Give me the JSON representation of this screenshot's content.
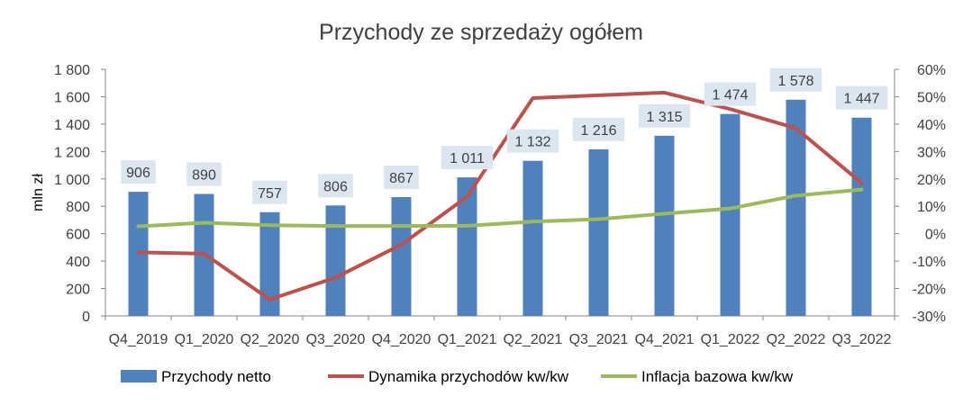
{
  "chart_data": {
    "type": "bar",
    "title": "Przychody ze sprzedaży ogółem",
    "ylabel": "mln zł",
    "ylim": [
      0,
      1800
    ],
    "y_ticks": [
      "0",
      "200",
      "400",
      "600",
      "800",
      "1 000",
      "1 200",
      "1 400",
      "1 600",
      "1 800"
    ],
    "y2lim": [
      -0.3,
      0.6
    ],
    "y2_ticks": [
      "-30%",
      "-20%",
      "-10%",
      "0%",
      "10%",
      "20%",
      "30%",
      "40%",
      "50%",
      "60%"
    ],
    "categories": [
      "Q4_2019",
      "Q1_2020",
      "Q2_2020",
      "Q3_2020",
      "Q4_2020",
      "Q1_2021",
      "Q2_2021",
      "Q3_2021",
      "Q4_2021",
      "Q1_2022",
      "Q2_2022",
      "Q3_2022"
    ],
    "legend_position": "bottom",
    "grid": false,
    "series": [
      {
        "name": "Przychody netto",
        "type": "bar",
        "axis": "left",
        "color": "#4F81BD",
        "values": [
          906,
          890,
          757,
          806,
          867,
          1011,
          1132,
          1216,
          1315,
          1474,
          1578,
          1447
        ],
        "labels": [
          "906",
          "890",
          "757",
          "806",
          "867",
          "1 011",
          "1 132",
          "1 216",
          "1 315",
          "1 474",
          "1 578",
          "1 447"
        ],
        "label_box_color": "#DCE6F1"
      },
      {
        "name": "Dynamika przychodów kw/kw",
        "type": "line",
        "axis": "right",
        "color": "#C0504D",
        "values": [
          -0.068,
          -0.073,
          -0.24,
          -0.16,
          -0.04,
          0.135,
          0.495,
          0.505,
          0.515,
          0.455,
          0.385,
          0.185
        ]
      },
      {
        "name": "Inflacja bazowa kw/kw",
        "type": "line",
        "axis": "right",
        "color": "#9BBB59",
        "values": [
          0.027,
          0.04,
          0.031,
          0.028,
          0.028,
          0.029,
          0.044,
          0.053,
          0.073,
          0.092,
          0.139,
          0.161
        ]
      }
    ]
  }
}
